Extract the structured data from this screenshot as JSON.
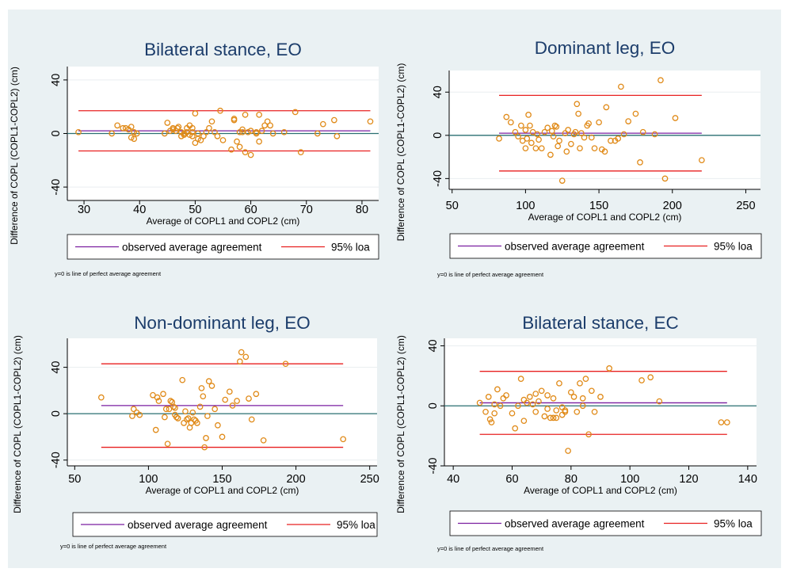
{
  "colors": {
    "background": "#eaf1f3",
    "plot_area": "#ffffff",
    "gridline": "#e9eef0",
    "title": "#1c3d6b",
    "points": "#e08a18",
    "observed_line": "#7a1fa0",
    "loa_line": "#e82020",
    "zero_line": "#2a6f72"
  },
  "legend": {
    "observed_label": "observed average agreement",
    "loa_label": "95% loa"
  },
  "note": "y=0 is line of perfect average agreement",
  "chart_data": [
    {
      "type": "scatter",
      "title": "Bilateral stance, EO",
      "xlabel": "Average of COPL1 and COPL2 (cm)",
      "ylabel": "Difference of COPL (COPL1-COPL2) (cm)",
      "xlim": [
        27,
        83
      ],
      "ylim": [
        -50,
        50
      ],
      "xticks": [
        30,
        40,
        50,
        60,
        70,
        80
      ],
      "yticks": [
        -40,
        0,
        40
      ],
      "grid": true,
      "observed_mean": 2,
      "loa": [
        -13,
        17
      ],
      "zero_line": 0,
      "x": [
        29,
        35,
        36,
        37,
        37.5,
        38,
        38.5,
        38.5,
        39,
        39,
        39.5,
        44.5,
        45,
        45.5,
        46,
        46,
        46.5,
        46.8,
        47,
        47.5,
        47.5,
        48,
        48,
        48.5,
        48.5,
        49,
        49,
        49.5,
        49.5,
        49.5,
        50,
        50,
        50.5,
        50.5,
        51,
        51.5,
        52,
        52.5,
        53,
        53.5,
        54,
        54.5,
        55,
        56.5,
        57,
        57,
        57.5,
        58,
        58,
        58.5,
        58.5,
        59,
        59,
        59.5,
        60,
        60,
        61,
        61,
        61.5,
        61.5,
        62,
        62.5,
        63,
        63.5,
        64,
        66,
        68,
        69,
        72,
        73,
        75,
        75.5,
        81.5
      ],
      "y": [
        1,
        0,
        6,
        4,
        4,
        3,
        5,
        -3,
        -4,
        1,
        0,
        0,
        8,
        2,
        3,
        4,
        2,
        4,
        5,
        -2,
        1,
        0,
        -1,
        4,
        1,
        -1,
        6,
        4,
        -2,
        1,
        15,
        -7,
        0,
        -4,
        -5,
        -2,
        1,
        4,
        9,
        1,
        -2,
        17,
        -5,
        -12,
        10,
        11,
        -6,
        1,
        -10,
        3,
        1,
        -14,
        14,
        1,
        2,
        -16,
        1,
        0,
        14,
        -6,
        2,
        6,
        9,
        6,
        0,
        1,
        16,
        -14,
        0,
        7,
        10,
        -2,
        9
      ]
    },
    {
      "type": "scatter",
      "title": "Dominant leg, EO",
      "xlabel": "Average of COPL1 and COPL2 (cm)",
      "ylabel": "Difference of COPL (COPL1-COPL2) (cm)",
      "xlim": [
        48,
        260
      ],
      "ylim": [
        -50,
        60
      ],
      "xticks": [
        50,
        100,
        150,
        200,
        250
      ],
      "yticks": [
        -40,
        0,
        40
      ],
      "grid": true,
      "observed_mean": 2,
      "loa": [
        -33,
        37
      ],
      "zero_line": 0,
      "x": [
        82,
        87,
        90,
        93,
        95,
        97,
        98,
        100,
        100,
        101,
        102,
        103,
        104,
        105,
        107,
        108,
        109,
        111,
        113,
        115,
        117,
        118,
        119,
        120,
        121,
        122,
        123,
        125,
        127,
        128,
        129,
        131,
        133,
        134,
        135,
        136,
        137,
        138,
        140,
        142,
        143,
        145,
        147,
        150,
        152,
        154,
        155,
        158,
        161,
        163,
        165,
        167,
        170,
        175,
        178,
        180,
        188,
        192,
        195,
        202,
        220
      ],
      "y": [
        -3,
        17,
        12,
        3,
        -1,
        9,
        -5,
        -12,
        5,
        -3,
        19,
        9,
        -7,
        3,
        -12,
        1,
        -4,
        -12,
        3,
        7,
        -18,
        4,
        -1,
        9,
        8,
        -10,
        -5,
        -42,
        2,
        -15,
        5,
        -8,
        1,
        3,
        29,
        20,
        -12,
        2,
        -2,
        9,
        11,
        -2,
        -12,
        12,
        -13,
        -15,
        26,
        -5,
        -5,
        -3,
        45,
        1,
        13,
        20,
        -25,
        3,
        1,
        51,
        -40,
        16,
        -23
      ]
    },
    {
      "type": "scatter",
      "title": "Non-dominant leg, EO",
      "xlabel": "Average of COPL1 and COPL2 (cm)",
      "ylabel": "Difference of COPL (COPL1-COPL2) (cm)",
      "xlim": [
        45,
        255
      ],
      "ylim": [
        -45,
        65
      ],
      "xticks": [
        50,
        100,
        150,
        200,
        250
      ],
      "yticks": [
        -40,
        0,
        40
      ],
      "grid": true,
      "observed_mean": 7,
      "loa": [
        -29,
        43
      ],
      "zero_line": 0,
      "x": [
        68,
        89,
        90,
        92,
        94,
        103,
        105,
        106,
        107,
        110,
        111,
        112,
        113,
        114,
        115,
        116,
        117,
        118,
        118,
        119,
        120,
        123,
        124,
        125,
        126,
        127,
        128,
        129,
        130,
        131,
        132,
        133,
        135,
        136,
        137,
        138,
        139,
        140,
        141,
        143,
        145,
        147,
        150,
        152,
        155,
        157,
        160,
        162,
        163,
        166,
        168,
        170,
        173,
        178,
        193,
        232
      ],
      "y": [
        14,
        -2,
        4,
        1,
        -1,
        16,
        -14,
        14,
        11,
        17,
        -3,
        4,
        -26,
        4,
        11,
        10,
        6,
        5,
        -1,
        -3,
        -4,
        29,
        -8,
        2,
        -5,
        -4,
        -12,
        -8,
        1,
        -5,
        -6,
        -8,
        6,
        22,
        15,
        -29,
        -21,
        -2,
        28,
        24,
        4,
        -10,
        -20,
        12,
        19,
        7,
        11,
        45,
        53,
        49,
        13,
        -5,
        17,
        -23,
        43,
        -22
      ]
    },
    {
      "type": "scatter",
      "title": "Bilateral stance, EC",
      "xlabel": "Average of COPL1 and COPL2 (cm)",
      "ylabel": "Difference of COPL (COPL1-COPL2) (cm)",
      "xlim": [
        37,
        143
      ],
      "ylim": [
        -40,
        45
      ],
      "xticks": [
        40,
        60,
        80,
        100,
        120,
        140
      ],
      "yticks": [
        -40,
        0,
        40
      ],
      "grid": true,
      "observed_mean": 2,
      "loa": [
        -19,
        23
      ],
      "zero_line": 0,
      "x": [
        49,
        51,
        52,
        52.5,
        53,
        54,
        54,
        55,
        56,
        57,
        58,
        60,
        61,
        62,
        63,
        64,
        64,
        65,
        66,
        67,
        68,
        68,
        69,
        70,
        71,
        72,
        72,
        73,
        74,
        74,
        75,
        75,
        76,
        77,
        77,
        78,
        78,
        79,
        80,
        81,
        82,
        83,
        84,
        84,
        85,
        86,
        87,
        88,
        90,
        93,
        104,
        107,
        110,
        131,
        133
      ],
      "y": [
        2,
        -4,
        6,
        -9,
        -11,
        1,
        -5,
        11,
        0,
        5,
        7,
        -5,
        -15,
        0,
        18,
        4,
        -10,
        2,
        6,
        1,
        8,
        -4,
        3,
        10,
        -7,
        7,
        -2,
        -8,
        5,
        -8,
        -3,
        -8,
        15,
        -1,
        -6,
        -3,
        -4,
        -30,
        9,
        6,
        -4,
        15,
        0,
        5,
        18,
        -19,
        10,
        -4,
        6,
        25,
        17,
        19,
        3,
        -11,
        -11
      ]
    }
  ]
}
